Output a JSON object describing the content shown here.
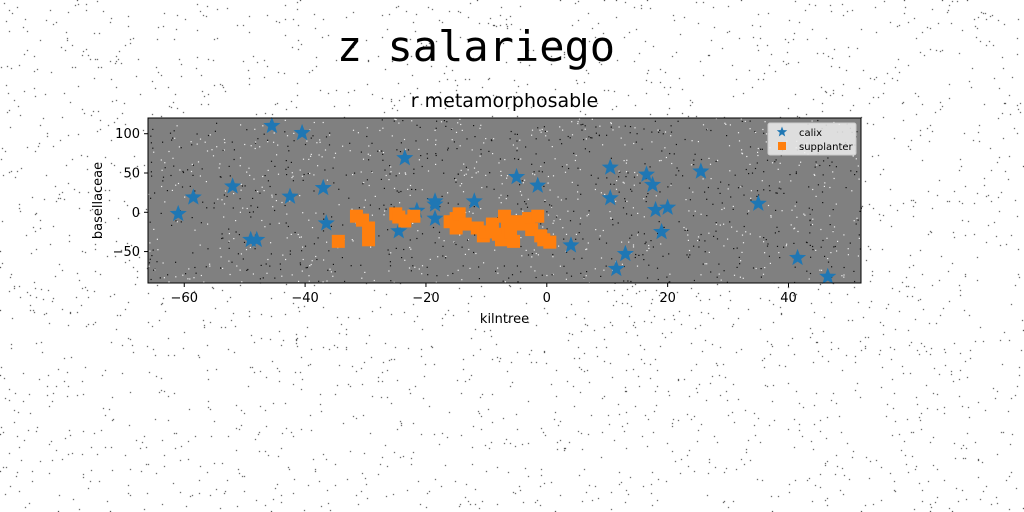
{
  "page_title": "z salariego",
  "chart_data": {
    "type": "scatter",
    "title": "r metamorphosable",
    "xlabel": "kilntree",
    "ylabel": "basellaceae",
    "xlim": [
      -66,
      52
    ],
    "ylim": [
      -90,
      120
    ],
    "xticks": [
      -60,
      -40,
      -20,
      0,
      20,
      40
    ],
    "yticks": [
      -50,
      0,
      50,
      100
    ],
    "xtick_labels": [
      "−60",
      "−40",
      "−20",
      "0",
      "20",
      "40"
    ],
    "ytick_labels": [
      "−50",
      "0",
      "50",
      "100"
    ],
    "grid": false,
    "legend_position": "top-right",
    "plot_background": "#808080",
    "series": [
      {
        "name": "calix",
        "marker": "star",
        "color": "#1f77b4",
        "points": [
          [
            -45.5,
            110
          ],
          [
            -40.5,
            101
          ],
          [
            -61,
            -2
          ],
          [
            -58.5,
            19
          ],
          [
            -52,
            33
          ],
          [
            -49,
            -35
          ],
          [
            -48,
            -35
          ],
          [
            -42.5,
            20
          ],
          [
            -37,
            31
          ],
          [
            -36.5,
            -14
          ],
          [
            -23.5,
            69
          ],
          [
            -24.5,
            -24
          ],
          [
            -21.5,
            2
          ],
          [
            -18.5,
            14
          ],
          [
            -18.5,
            10
          ],
          [
            -18.5,
            -8
          ],
          [
            -12,
            14
          ],
          [
            -5,
            45
          ],
          [
            -1.5,
            34
          ],
          [
            4,
            -42
          ],
          [
            10.5,
            57
          ],
          [
            10.5,
            18
          ],
          [
            11.5,
            -72
          ],
          [
            13,
            -53
          ],
          [
            16.5,
            48
          ],
          [
            17.5,
            35
          ],
          [
            18,
            3
          ],
          [
            19,
            -25
          ],
          [
            20,
            6
          ],
          [
            25.5,
            52
          ],
          [
            35,
            11
          ],
          [
            41.5,
            -58
          ],
          [
            46.5,
            -82
          ]
        ]
      },
      {
        "name": "supplanter",
        "marker": "square",
        "color": "#ff7f0e",
        "points": [
          [
            -34.5,
            -37
          ],
          [
            -31.5,
            -5
          ],
          [
            -30.5,
            -10
          ],
          [
            -29.5,
            -20
          ],
          [
            -29.5,
            -35
          ],
          [
            -25,
            -2
          ],
          [
            -24.5,
            -6
          ],
          [
            -23.5,
            -11
          ],
          [
            -22,
            -5
          ],
          [
            -16,
            -12
          ],
          [
            -15,
            -8
          ],
          [
            -15,
            -20
          ],
          [
            -14.5,
            -2
          ],
          [
            -13.5,
            -15
          ],
          [
            -11.5,
            -20
          ],
          [
            -10.5,
            -30
          ],
          [
            -10,
            -25
          ],
          [
            -9,
            -15
          ],
          [
            -8,
            -28
          ],
          [
            -7.5,
            -35
          ],
          [
            -7,
            -5
          ],
          [
            -6.5,
            -20
          ],
          [
            -6,
            -25
          ],
          [
            -5.5,
            -37
          ],
          [
            -5,
            -12
          ],
          [
            -4,
            -15
          ],
          [
            -3,
            -8
          ],
          [
            -2.5,
            -22
          ],
          [
            -1.5,
            -5
          ],
          [
            -1,
            -30
          ],
          [
            -0.5,
            -35
          ],
          [
            0.5,
            -38
          ]
        ]
      }
    ]
  }
}
